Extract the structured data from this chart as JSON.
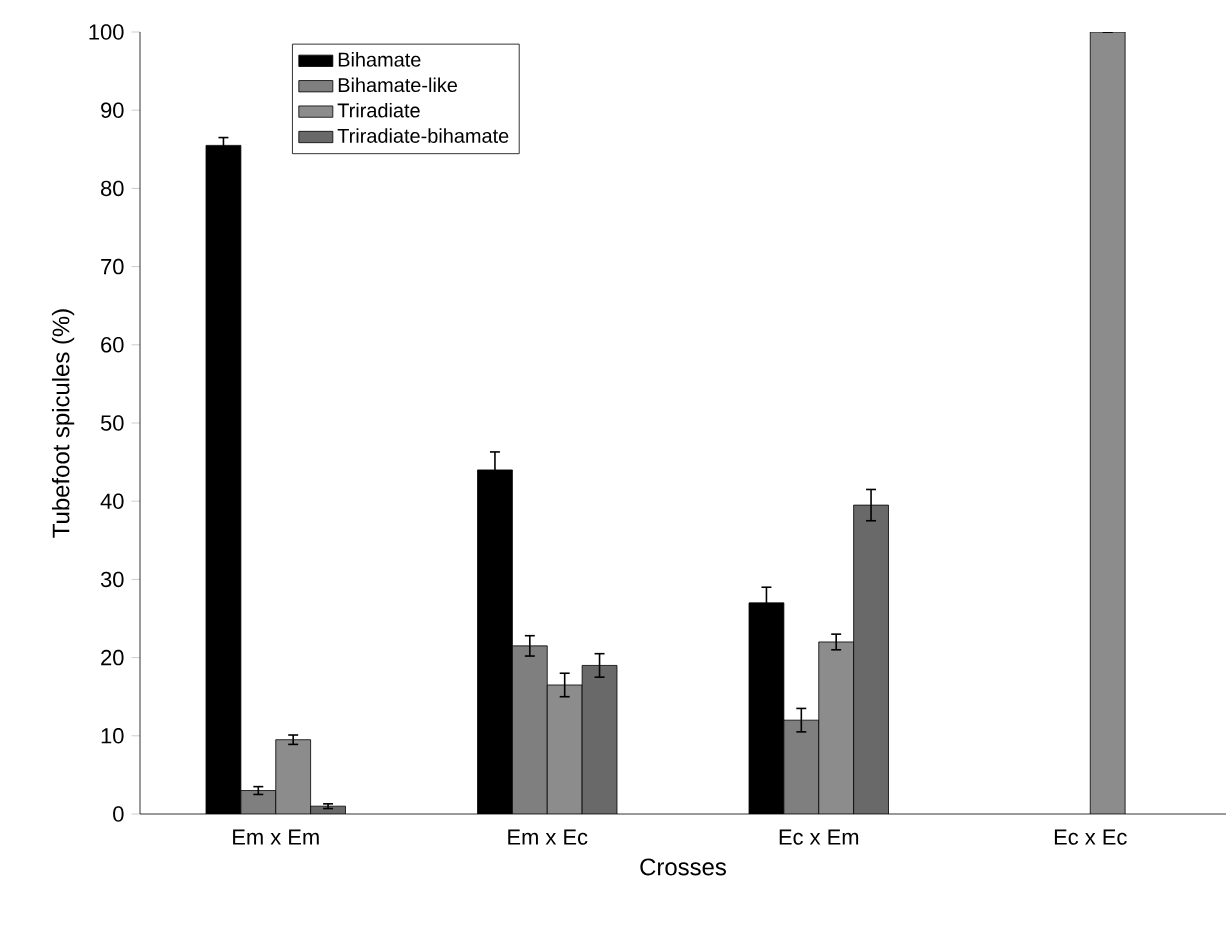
{
  "chart_data": {
    "type": "bar",
    "xlabel": "Crosses",
    "ylabel": "Tubefoot spicules (%)",
    "categories": [
      "Em x Em",
      "Em x Ec",
      "Ec x Em",
      "Ec x Ec"
    ],
    "series": [
      {
        "name": "Bihamate",
        "color": "#000000",
        "values": [
          85.5,
          44,
          27,
          null
        ],
        "errors": [
          1,
          2.3,
          2,
          null
        ]
      },
      {
        "name": "Bihamate-like",
        "color": "#7f7f7f",
        "values": [
          3,
          21.5,
          12,
          null
        ],
        "errors": [
          0.5,
          1.3,
          1.5,
          null
        ]
      },
      {
        "name": "Triradiate",
        "color": "#8c8c8c",
        "values": [
          9.5,
          16.5,
          22,
          100
        ],
        "errors": [
          0.6,
          1.5,
          1,
          null
        ]
      },
      {
        "name": "Triradiate-bihamate",
        "color": "#696969",
        "values": [
          1,
          19,
          39.5,
          null
        ],
        "errors": [
          0.3,
          1.5,
          2,
          null
        ]
      }
    ],
    "ylim": [
      0,
      100
    ],
    "yticks": [
      0,
      10,
      20,
      30,
      40,
      50,
      60,
      70,
      80,
      90,
      100
    ],
    "grid": false,
    "legend": "top left"
  }
}
